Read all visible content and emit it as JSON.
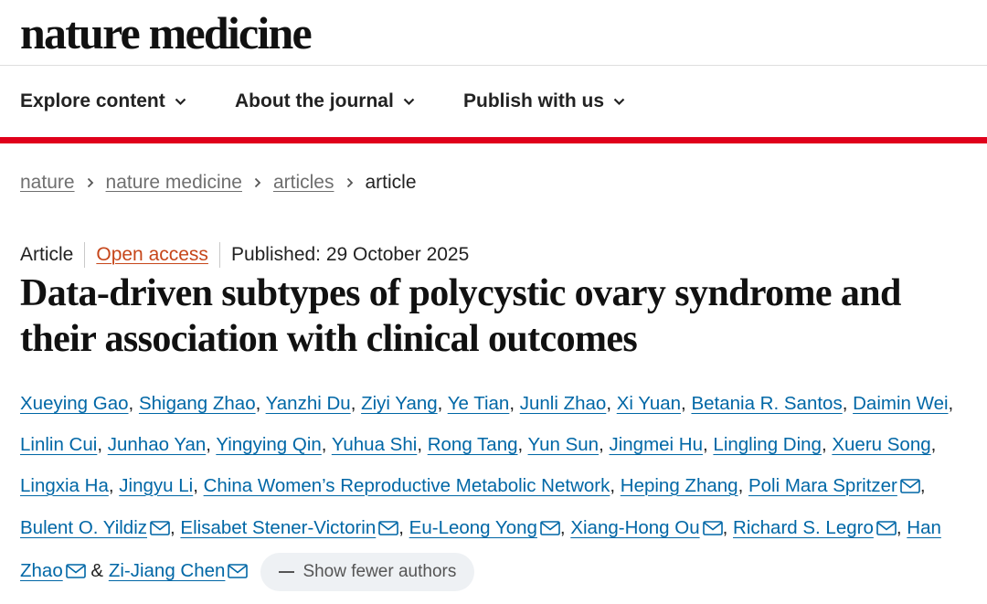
{
  "site": {
    "logo_text": "nature medicine"
  },
  "nav": [
    {
      "label": "Explore content"
    },
    {
      "label": "About the journal"
    },
    {
      "label": "Publish with us"
    }
  ],
  "breadcrumb": [
    {
      "label": "nature"
    },
    {
      "label": "nature medicine"
    },
    {
      "label": "articles"
    },
    {
      "label": "article"
    }
  ],
  "article": {
    "type": "Article",
    "access": "Open access",
    "published": "Published: 29 October 2025",
    "title": "Data-driven subtypes of polycystic ovary syndrome and their association with clinical outcomes"
  },
  "authors": [
    {
      "name": "Xueying Gao"
    },
    {
      "name": "Shigang Zhao"
    },
    {
      "name": "Yanzhi Du"
    },
    {
      "name": "Ziyi Yang"
    },
    {
      "name": "Ye Tian"
    },
    {
      "name": "Junli Zhao"
    },
    {
      "name": "Xi Yuan"
    },
    {
      "name": "Betania R. Santos"
    },
    {
      "name": "Daimin Wei"
    },
    {
      "name": "Linlin Cui"
    },
    {
      "name": "Junhao Yan"
    },
    {
      "name": "Yingying Qin"
    },
    {
      "name": "Yuhua Shi"
    },
    {
      "name": "Rong Tang"
    },
    {
      "name": "Yun Sun"
    },
    {
      "name": "Jingmei Hu"
    },
    {
      "name": "Lingling Ding"
    },
    {
      "name": "Xueru Song"
    },
    {
      "name": "Lingxia Ha"
    },
    {
      "name": "Jingyu Li"
    },
    {
      "name": "China Women’s Reproductive Metabolic Network"
    },
    {
      "name": "Heping Zhang"
    },
    {
      "name": "Poli Mara Spritzer",
      "email": true
    },
    {
      "name": "Bulent O. Yildiz",
      "email": true
    },
    {
      "name": "Elisabet Stener-Victorin",
      "email": true
    },
    {
      "name": "Eu-Leong Yong",
      "email": true
    },
    {
      "name": "Xiang-Hong Ou",
      "email": true
    },
    {
      "name": "Richard S. Legro",
      "email": true
    },
    {
      "name": "Han Zhao",
      "email": true
    },
    {
      "name": "Zi-Jiang Chen",
      "email": true,
      "last": true
    }
  ],
  "authors_separator": ",",
  "authors_last_connector": "&",
  "show_fewer_label": "Show fewer authors",
  "colors": {
    "accent_red": "#e0001b",
    "link_blue": "#0067a6",
    "open_access_orange": "#c6461a"
  },
  "icons": {
    "nav_dropdown": "chevron-down-icon",
    "breadcrumb_separator": "chevron-right-icon",
    "author_email": "mail-icon"
  }
}
